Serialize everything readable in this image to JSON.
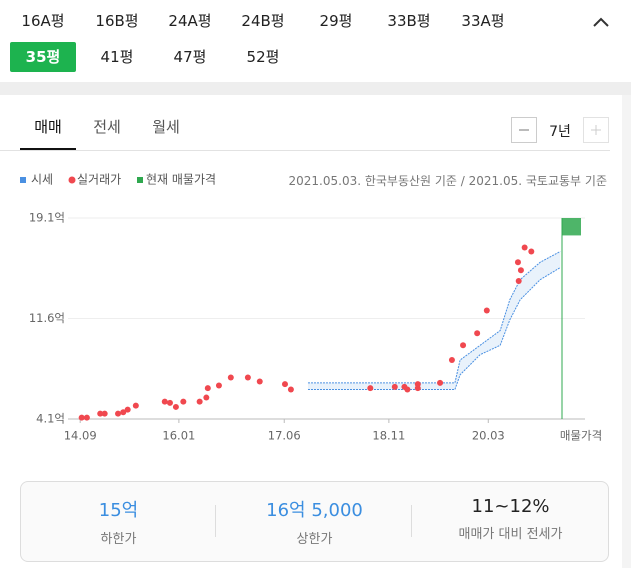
{
  "size_tabs": {
    "items": [
      "16A평",
      "16B평",
      "24A평",
      "24B평",
      "29평",
      "33B평",
      "33A평",
      "35평",
      "41평",
      "47평",
      "52평"
    ],
    "selected": 7
  },
  "deal_tabs": {
    "items": [
      "매매",
      "전세",
      "월세"
    ],
    "selected": 0
  },
  "period": "7년",
  "source": "2021.05.03. 한국부동산원 기준 / 2021.05. 국토교통부 기준",
  "chart_data": {
    "type": "scatter",
    "series": [
      {
        "name": "시세",
        "color": "#4a90e2",
        "x": [
          2017.74,
          2018.04,
          2018.44,
          2018.98,
          2019.52,
          2019.72,
          2019.79,
          2020.06,
          2020.33,
          2020.46,
          2020.6,
          2020.87,
          2021.14
        ],
        "lower": [
          6.3,
          6.3,
          6.3,
          6.3,
          6.3,
          6.3,
          7.4,
          8.9,
          9.6,
          11.5,
          13.0,
          14.5,
          15.4
        ],
        "upper": [
          6.8,
          6.8,
          6.8,
          6.8,
          6.8,
          6.8,
          8.5,
          9.6,
          10.7,
          13.0,
          14.5,
          15.8,
          16.6
        ]
      },
      {
        "name": "실거래가",
        "color": "#f0484f",
        "x": [
          2014.69,
          2014.76,
          2014.94,
          2015.0,
          2015.18,
          2015.25,
          2015.31,
          2015.42,
          2015.81,
          2015.88,
          2015.96,
          2016.06,
          2016.28,
          2016.37,
          2016.39,
          2016.54,
          2016.7,
          2016.93,
          2017.09,
          2017.43,
          2017.51,
          2018.58,
          2018.91,
          2019.04,
          2019.08,
          2019.22,
          2019.22,
          2019.52,
          2019.68,
          2019.83,
          2020.02,
          2020.15,
          2020.58,
          2020.61,
          2020.57,
          2020.66,
          2020.75
        ],
        "values": [
          4.2,
          4.2,
          4.5,
          4.5,
          4.5,
          4.6,
          4.8,
          5.1,
          5.4,
          5.3,
          5.0,
          5.4,
          5.4,
          5.7,
          6.4,
          6.6,
          7.2,
          7.2,
          6.9,
          6.7,
          6.3,
          6.4,
          6.5,
          6.5,
          6.3,
          6.7,
          6.4,
          6.8,
          8.5,
          9.6,
          10.5,
          12.2,
          14.4,
          15.2,
          15.8,
          16.9,
          16.6
        ]
      }
    ],
    "listing": {
      "name": "현재 매물가격",
      "color": "#2fa84f",
      "label": "매물가격",
      "range": [
        17.8,
        19.1
      ]
    },
    "xlim": [
      2014.6,
      2021.15
    ],
    "xticks": [
      {
        "value": 2014.67,
        "label": "14.09"
      },
      {
        "value": 2016.0,
        "label": "16.01"
      },
      {
        "value": 2017.42,
        "label": "17.06"
      },
      {
        "value": 2018.83,
        "label": "18.11"
      },
      {
        "value": 2020.17,
        "label": "20.03"
      }
    ],
    "ylim": [
      4.1,
      19.1
    ],
    "yticks": [
      {
        "value": 4.1,
        "label": "4.1억"
      },
      {
        "value": 11.6,
        "label": "11.6억"
      },
      {
        "value": 19.1,
        "label": "19.1억"
      }
    ],
    "grid": true
  },
  "summary": [
    {
      "value": "15억",
      "label": "하한가"
    },
    {
      "value": "16억 5,000",
      "label": "상한가"
    },
    {
      "value": "11~12%",
      "label": "매매가 대비 전세가"
    }
  ]
}
